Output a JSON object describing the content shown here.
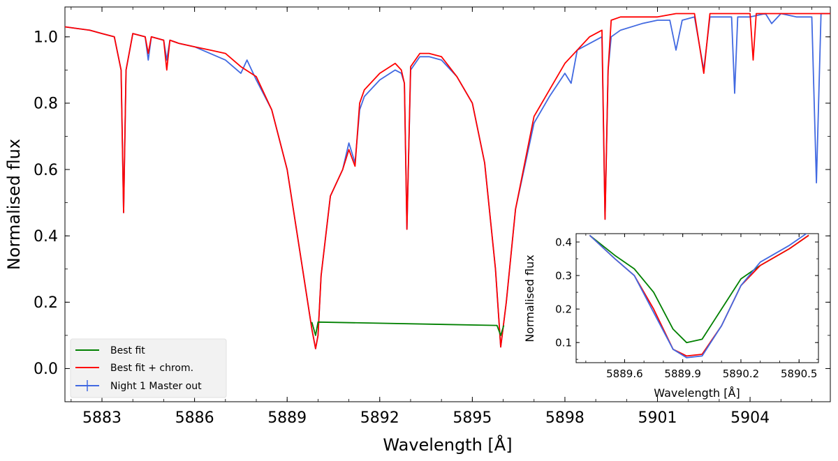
{
  "chart_data": [
    {
      "type": "line",
      "xlabel": "Wavelength [Å]",
      "ylabel": "Normalised flux",
      "xlim": [
        5881.8,
        5906.6
      ],
      "ylim": [
        -0.1,
        1.09
      ],
      "xticks": [
        5883,
        5886,
        5889,
        5892,
        5895,
        5898,
        5901,
        5904
      ],
      "yticks": [
        0.0,
        0.2,
        0.4,
        0.6,
        0.8,
        1.0
      ],
      "grid": false,
      "legend": {
        "position": "bottom-left",
        "entries": [
          {
            "name": "Best fit",
            "color": "#008000"
          },
          {
            "name": "Best fit + chrom.",
            "color": "#ff0000"
          },
          {
            "name": "Night 1 Master out",
            "color": "#4169e1"
          }
        ]
      },
      "series": [
        {
          "name": "Night 1 Master out",
          "color": "#4169e1",
          "x": [
            5881.8,
            5882.6,
            5883.0,
            5883.4,
            5883.62,
            5883.7,
            5883.78,
            5884.0,
            5884.4,
            5884.5,
            5884.6,
            5885.0,
            5885.1,
            5885.2,
            5885.5,
            5886.0,
            5886.5,
            5887.0,
            5887.5,
            5887.7,
            5888.0,
            5888.5,
            5889.0,
            5889.5,
            5889.8,
            5889.92,
            5890.0,
            5890.1,
            5890.4,
            5890.8,
            5891.0,
            5891.2,
            5891.35,
            5891.5,
            5892.0,
            5892.5,
            5892.7,
            5892.8,
            5892.88,
            5893.0,
            5893.3,
            5893.6,
            5894.0,
            5894.5,
            5895.0,
            5895.4,
            5895.75,
            5895.92,
            5896.1,
            5896.4,
            5897.0,
            5897.5,
            5898.0,
            5898.2,
            5898.4,
            5898.8,
            5899.2,
            5899.3,
            5899.4,
            5899.5,
            5899.8,
            5900.5,
            5901.0,
            5901.4,
            5901.6,
            5901.8,
            5902.2,
            5902.5,
            5902.7,
            5903.0,
            5903.4,
            5903.5,
            5903.6,
            5904.0,
            5904.5,
            5904.7,
            5905.0,
            5905.5,
            5906.0,
            5906.15,
            5906.3,
            5906.6
          ],
          "y": [
            1.03,
            1.02,
            1.01,
            1.0,
            0.9,
            0.47,
            0.9,
            1.01,
            1.0,
            0.93,
            1.0,
            0.99,
            0.93,
            0.99,
            0.98,
            0.97,
            0.95,
            0.93,
            0.89,
            0.93,
            0.87,
            0.78,
            0.6,
            0.3,
            0.12,
            0.06,
            0.1,
            0.28,
            0.52,
            0.6,
            0.68,
            0.62,
            0.78,
            0.82,
            0.87,
            0.9,
            0.89,
            0.86,
            0.42,
            0.9,
            0.94,
            0.94,
            0.93,
            0.88,
            0.8,
            0.62,
            0.3,
            0.065,
            0.2,
            0.48,
            0.74,
            0.82,
            0.89,
            0.86,
            0.96,
            0.98,
            1.0,
            0.45,
            0.9,
            1.0,
            1.02,
            1.04,
            1.05,
            1.05,
            0.96,
            1.05,
            1.06,
            0.9,
            1.06,
            1.06,
            1.06,
            0.83,
            1.06,
            1.06,
            1.07,
            1.04,
            1.07,
            1.06,
            1.06,
            0.56,
            1.07,
            1.07
          ]
        },
        {
          "name": "Best fit + chrom.",
          "color": "#ff0000",
          "x": [
            5881.8,
            5882.6,
            5883.0,
            5883.4,
            5883.62,
            5883.7,
            5883.78,
            5884.0,
            5884.4,
            5884.5,
            5884.6,
            5885.0,
            5885.1,
            5885.2,
            5885.5,
            5886.0,
            5886.5,
            5887.0,
            5887.5,
            5888.0,
            5888.5,
            5889.0,
            5889.5,
            5889.8,
            5889.92,
            5890.0,
            5890.1,
            5890.4,
            5890.8,
            5891.0,
            5891.2,
            5891.35,
            5891.5,
            5892.0,
            5892.5,
            5892.7,
            5892.8,
            5892.88,
            5893.0,
            5893.3,
            5893.6,
            5894.0,
            5894.5,
            5895.0,
            5895.4,
            5895.75,
            5895.92,
            5896.1,
            5896.4,
            5897.0,
            5897.5,
            5898.0,
            5898.4,
            5898.8,
            5899.2,
            5899.3,
            5899.4,
            5899.5,
            5899.8,
            5900.5,
            5901.0,
            5901.6,
            5902.2,
            5902.5,
            5902.7,
            5903.0,
            5903.5,
            5903.6,
            5904.0,
            5904.1,
            5904.2,
            5904.5,
            5905.0,
            5905.5,
            5906.0,
            5906.6
          ],
          "y": [
            1.03,
            1.02,
            1.01,
            1.0,
            0.9,
            0.47,
            0.9,
            1.01,
            1.0,
            0.95,
            1.0,
            0.99,
            0.9,
            0.99,
            0.98,
            0.97,
            0.96,
            0.95,
            0.91,
            0.88,
            0.78,
            0.6,
            0.3,
            0.12,
            0.06,
            0.1,
            0.28,
            0.52,
            0.6,
            0.66,
            0.61,
            0.8,
            0.84,
            0.89,
            0.92,
            0.9,
            0.86,
            0.42,
            0.91,
            0.95,
            0.95,
            0.94,
            0.88,
            0.8,
            0.62,
            0.3,
            0.065,
            0.2,
            0.48,
            0.76,
            0.84,
            0.92,
            0.96,
            1.0,
            1.02,
            0.45,
            0.9,
            1.05,
            1.06,
            1.06,
            1.06,
            1.07,
            1.07,
            0.89,
            1.07,
            1.07,
            1.07,
            1.07,
            1.07,
            0.93,
            1.07,
            1.07,
            1.07,
            1.07,
            1.07,
            1.07
          ]
        },
        {
          "name": "Best fit",
          "color": "#008000",
          "x": [
            5889.8,
            5889.92,
            5890.0,
            5895.8,
            5895.92,
            5896.02
          ],
          "y": [
            0.14,
            0.1,
            0.14,
            0.13,
            0.1,
            0.13
          ]
        }
      ]
    },
    {
      "type": "line",
      "xlabel": "Wavelength [Å]",
      "ylabel": "Normalised flux",
      "xlim": [
        5889.35,
        5890.6
      ],
      "ylim": [
        0.04,
        0.425
      ],
      "xticks": [
        5889.6,
        5889.9,
        5890.2,
        5890.5
      ],
      "xtick_labels": [
        "5889.6",
        "5889.9",
        "5890.2",
        "5890.5"
      ],
      "yticks": [
        0.1,
        0.2,
        0.3,
        0.4
      ],
      "grid": false,
      "series": [
        {
          "name": "Best fit",
          "color": "#008000",
          "x": [
            5889.42,
            5889.55,
            5889.65,
            5889.75,
            5889.85,
            5889.92,
            5890.0,
            5890.1,
            5890.2,
            5890.3,
            5890.45,
            5890.55
          ],
          "y": [
            0.42,
            0.36,
            0.32,
            0.25,
            0.14,
            0.1,
            0.11,
            0.2,
            0.29,
            0.33,
            0.38,
            0.42
          ]
        },
        {
          "name": "Best fit + chrom.",
          "color": "#ff0000",
          "x": [
            5889.42,
            5889.55,
            5889.65,
            5889.75,
            5889.85,
            5889.92,
            5890.0,
            5890.1,
            5890.2,
            5890.3,
            5890.45,
            5890.55
          ],
          "y": [
            0.42,
            0.35,
            0.3,
            0.2,
            0.08,
            0.06,
            0.065,
            0.15,
            0.27,
            0.33,
            0.38,
            0.42
          ]
        },
        {
          "name": "Night 1 Master out",
          "color": "#4169e1",
          "x": [
            5889.42,
            5889.55,
            5889.65,
            5889.75,
            5889.85,
            5889.92,
            5890.0,
            5890.1,
            5890.2,
            5890.3,
            5890.45,
            5890.55
          ],
          "y": [
            0.42,
            0.35,
            0.3,
            0.19,
            0.08,
            0.055,
            0.06,
            0.15,
            0.27,
            0.34,
            0.39,
            0.43
          ]
        }
      ]
    }
  ]
}
